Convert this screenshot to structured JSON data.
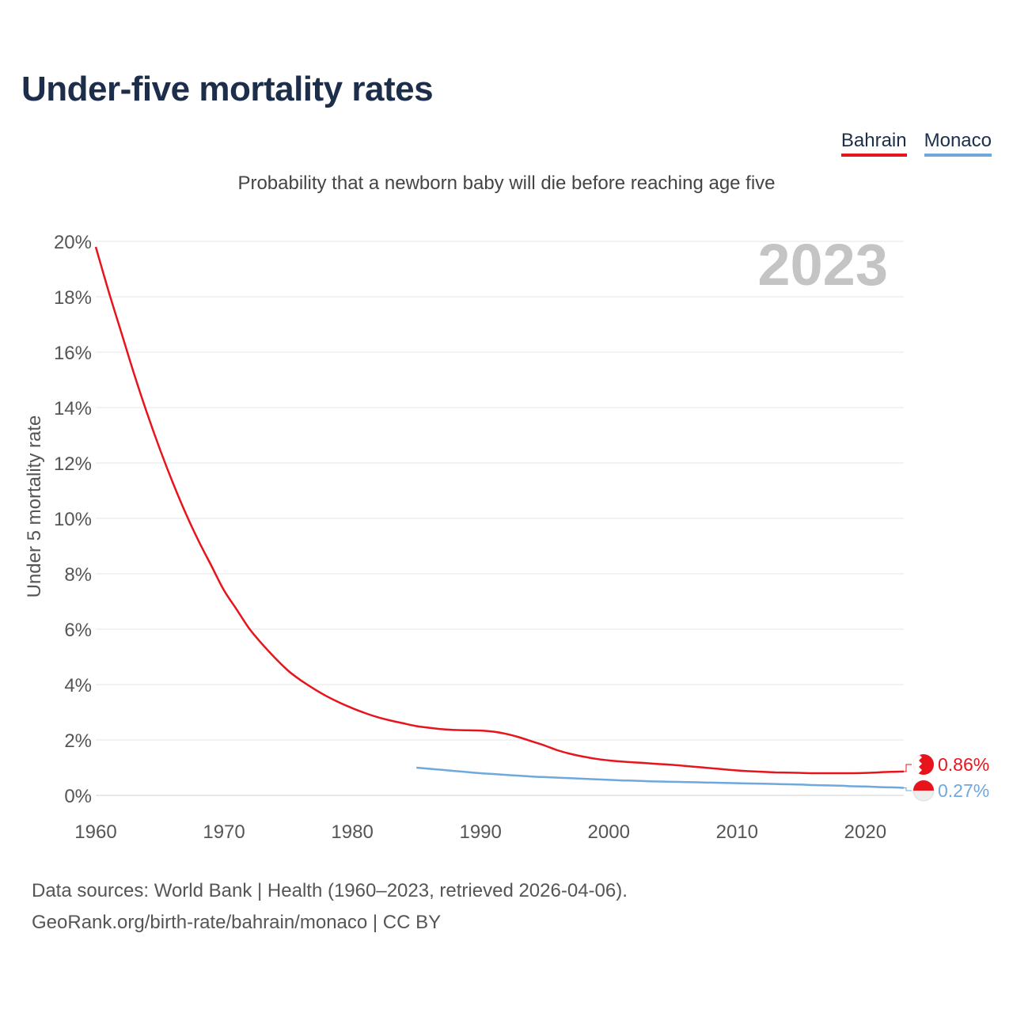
{
  "header": {
    "title": "Under-five mortality rates",
    "subtitle": "Probability that a newborn baby will die before reaching age five"
  },
  "legend": [
    {
      "label": "Bahrain",
      "color": "#e8141c"
    },
    {
      "label": "Monaco",
      "color": "#6fa8dc"
    }
  ],
  "footer": {
    "line1": "Data sources: World Bank | Health (1960–2023, retrieved 2026-04-06).",
    "line2": "GeoRank.org/birth-rate/bahrain/monaco | CC BY"
  },
  "chart_data": {
    "type": "line",
    "year_label": "2023",
    "ylabel": "Under 5 mortality rate",
    "xlim": [
      1960,
      2023
    ],
    "ylim": [
      0,
      20
    ],
    "x_ticks": [
      1960,
      1970,
      1980,
      1990,
      2000,
      2010,
      2020
    ],
    "y_ticks": [
      "0%",
      "2%",
      "4%",
      "6%",
      "8%",
      "10%",
      "12%",
      "14%",
      "16%",
      "18%",
      "20%"
    ],
    "series": [
      {
        "name": "Bahrain",
        "color": "#e8141c",
        "end_label": "0.86%",
        "x": [
          1960,
          1961,
          1962,
          1963,
          1964,
          1965,
          1966,
          1967,
          1968,
          1969,
          1970,
          1971,
          1972,
          1973,
          1974,
          1975,
          1976,
          1977,
          1978,
          1979,
          1980,
          1981,
          1982,
          1983,
          1984,
          1985,
          1986,
          1987,
          1988,
          1989,
          1990,
          1991,
          1992,
          1993,
          1994,
          1995,
          1996,
          1997,
          1998,
          1999,
          2000,
          2001,
          2002,
          2003,
          2004,
          2005,
          2006,
          2007,
          2008,
          2009,
          2010,
          2011,
          2012,
          2013,
          2014,
          2015,
          2016,
          2017,
          2018,
          2019,
          2020,
          2021,
          2022,
          2023
        ],
        "y": [
          19.8,
          18.2,
          16.7,
          15.2,
          13.8,
          12.5,
          11.3,
          10.2,
          9.2,
          8.3,
          7.4,
          6.7,
          6.0,
          5.45,
          4.95,
          4.5,
          4.15,
          3.85,
          3.58,
          3.35,
          3.15,
          2.97,
          2.82,
          2.7,
          2.6,
          2.5,
          2.44,
          2.39,
          2.36,
          2.35,
          2.34,
          2.3,
          2.22,
          2.1,
          1.95,
          1.8,
          1.63,
          1.5,
          1.4,
          1.32,
          1.26,
          1.22,
          1.19,
          1.16,
          1.13,
          1.1,
          1.06,
          1.02,
          0.98,
          0.94,
          0.9,
          0.87,
          0.85,
          0.83,
          0.82,
          0.81,
          0.8,
          0.8,
          0.8,
          0.8,
          0.81,
          0.83,
          0.85,
          0.86
        ]
      },
      {
        "name": "Monaco",
        "color": "#6fa8dc",
        "end_label": "0.27%",
        "x": [
          1985,
          1986,
          1987,
          1988,
          1989,
          1990,
          1991,
          1992,
          1993,
          1994,
          1995,
          1996,
          1997,
          1998,
          1999,
          2000,
          2001,
          2002,
          2003,
          2004,
          2005,
          2006,
          2007,
          2008,
          2009,
          2010,
          2011,
          2012,
          2013,
          2014,
          2015,
          2016,
          2017,
          2018,
          2019,
          2020,
          2021,
          2022,
          2023
        ],
        "y": [
          1.0,
          0.96,
          0.92,
          0.88,
          0.84,
          0.8,
          0.77,
          0.74,
          0.71,
          0.68,
          0.66,
          0.64,
          0.62,
          0.6,
          0.58,
          0.56,
          0.54,
          0.53,
          0.51,
          0.5,
          0.49,
          0.48,
          0.47,
          0.46,
          0.45,
          0.44,
          0.43,
          0.42,
          0.41,
          0.4,
          0.39,
          0.37,
          0.36,
          0.35,
          0.33,
          0.32,
          0.3,
          0.29,
          0.27
        ]
      }
    ]
  }
}
